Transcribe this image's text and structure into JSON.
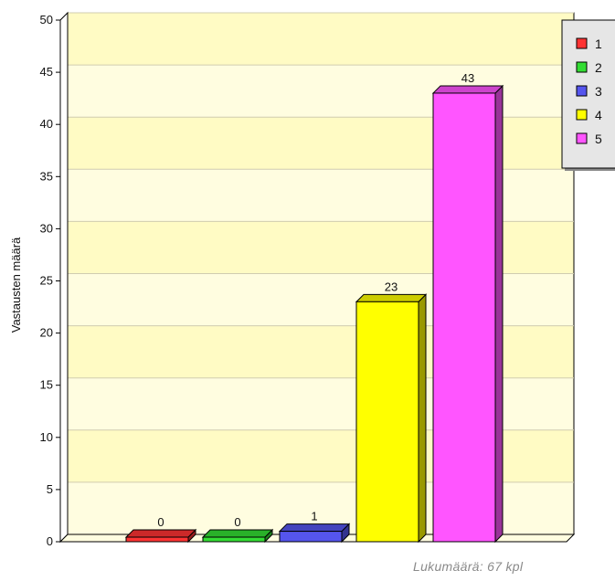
{
  "chart_data": {
    "type": "bar",
    "title": "",
    "xlabel": "",
    "ylabel": "Vastausten määrä",
    "ylim": [
      0,
      50
    ],
    "yticks": [
      0,
      5,
      10,
      15,
      20,
      25,
      30,
      35,
      40,
      45,
      50
    ],
    "grid": true,
    "legend_position": "top-right",
    "categories": [
      "1",
      "2",
      "3",
      "4",
      "5"
    ],
    "values": [
      0,
      0,
      1,
      23,
      43
    ],
    "data_labels": [
      "0",
      "0",
      "1",
      "23",
      "43"
    ],
    "colors": [
      "#ff3333",
      "#33dd33",
      "#5555ee",
      "#ffff00",
      "#ff55ff"
    ],
    "plot_background_colors": [
      "#fffde0",
      "#fffbc4"
    ]
  },
  "footer": {
    "count_text": "Lukumäärä: 67 kpl"
  }
}
